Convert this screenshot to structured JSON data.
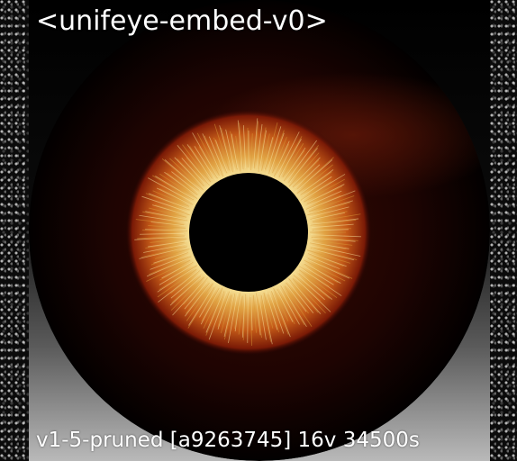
{
  "image": {
    "title_text": "<unifeye-embed-v0>",
    "footer_text": "v1-5-pruned [a9263745]  16v 34500s"
  },
  "colors": {
    "sclera": "#2a0603",
    "iris_outer": "#a8300e",
    "iris_mid": "#d88a2c",
    "iris_inner": "#f0d080",
    "pupil": "#000000"
  }
}
